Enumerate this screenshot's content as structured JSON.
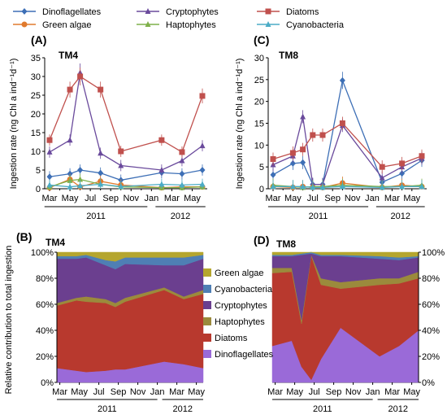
{
  "legend_top": [
    {
      "name": "Dinoflagellates",
      "color": "#3d6fb6",
      "marker": "diamond"
    },
    {
      "name": "Cryptophytes",
      "color": "#6a4a9c",
      "marker": "triangle"
    },
    {
      "name": "Diatoms",
      "color": "#c0504d",
      "marker": "square"
    },
    {
      "name": "Green algae",
      "color": "#e07a2e",
      "marker": "circle"
    },
    {
      "name": "Haptophytes",
      "color": "#7fb04a",
      "marker": "triangle"
    },
    {
      "name": "Cyanobacteria",
      "color": "#4bacc6",
      "marker": "triangle"
    }
  ],
  "chart_data": [
    {
      "panel": "(A)",
      "station": "TM4",
      "type": "line",
      "ylabel": "Ingestion rate (ng Chl a ind⁻¹d⁻¹)",
      "ylim": [
        0,
        35
      ],
      "yticks": [
        0,
        5,
        10,
        15,
        20,
        25,
        30,
        35
      ],
      "month_ticks": [
        "Mar",
        "May",
        "Jul",
        "Sep",
        "Nov",
        "Jan",
        "Mar",
        "May"
      ],
      "year_labels": [
        "2011",
        "2012"
      ],
      "x": [
        0,
        2,
        3,
        5,
        7,
        11,
        13,
        15
      ],
      "series": [
        {
          "name": "Dinoflagellates",
          "values": [
            3.2,
            4,
            5,
            4.2,
            2.3,
            4.3,
            4,
            5
          ]
        },
        {
          "name": "Cryptophytes",
          "values": [
            9.8,
            13,
            31,
            9.5,
            6.2,
            5,
            7.5,
            11.5
          ]
        },
        {
          "name": "Diatoms",
          "values": [
            13,
            26.5,
            30,
            26.5,
            10,
            13,
            9.8,
            24.8
          ]
        },
        {
          "name": "Green algae",
          "values": [
            0.3,
            2.5,
            0.5,
            2,
            1,
            0.3,
            0.5,
            0.5
          ]
        },
        {
          "name": "Haptophytes",
          "values": [
            0.5,
            2.2,
            2.5,
            1.2,
            0.5,
            0.3,
            0.3,
            0.5
          ]
        },
        {
          "name": "Cyanobacteria",
          "values": [
            1,
            0.5,
            0.8,
            1.2,
            0.6,
            1.2,
            1,
            1.2
          ]
        }
      ]
    },
    {
      "panel": "(C)",
      "station": "TM8",
      "type": "line",
      "ylim": [
        0,
        30
      ],
      "yticks": [
        0,
        5,
        10,
        15,
        20,
        25,
        30
      ],
      "month_ticks": [
        "Mar",
        "May",
        "Jul",
        "Sep",
        "Nov",
        "Jan",
        "Mar",
        "May"
      ],
      "year_labels": [
        "2011",
        "2012"
      ],
      "x": [
        0,
        2,
        3,
        4,
        5,
        7,
        11,
        13,
        15
      ],
      "series": [
        {
          "name": "Dinoflagellates",
          "values": [
            3.2,
            5.8,
            6,
            1,
            1,
            24.8,
            1.5,
            3.5,
            6.5
          ]
        },
        {
          "name": "Cryptophytes",
          "values": [
            5.5,
            7.5,
            16.5,
            1,
            1,
            14.5,
            2.5,
            5,
            7
          ]
        },
        {
          "name": "Diatoms",
          "values": [
            6.8,
            8.2,
            9,
            12.3,
            12.3,
            15,
            5,
            5.8,
            7.5
          ]
        },
        {
          "name": "Green algae",
          "values": [
            0.5,
            0.3,
            0.5,
            0.3,
            0.3,
            1.3,
            0.3,
            0.8,
            0.5
          ]
        },
        {
          "name": "Haptophytes",
          "values": [
            0.8,
            0.5,
            0.3,
            0.5,
            0.5,
            0.8,
            0.5,
            0.5,
            0.8
          ]
        },
        {
          "name": "Cyanobacteria",
          "values": [
            0.5,
            0.5,
            0.5,
            0.3,
            0.3,
            0.5,
            0.3,
            0.5,
            0.5
          ]
        }
      ]
    },
    {
      "panel": "(B)",
      "station": "TM4",
      "type": "area",
      "ylabel": "Relative contribution to total ingestion",
      "ylim": [
        0,
        100
      ],
      "yticks": [
        "0%",
        "20%",
        "40%",
        "60%",
        "80%",
        "100%"
      ],
      "month_ticks": [
        "Mar",
        "May",
        "Jul",
        "Sep",
        "Nov",
        "Jan",
        "Mar",
        "May"
      ],
      "year_labels": [
        "2011",
        "2012"
      ],
      "x": [
        0,
        2,
        3,
        5,
        6,
        7,
        11,
        13,
        15
      ],
      "series": [
        {
          "name": "Dinoflagellates",
          "values": [
            11,
            9,
            8,
            9,
            10,
            10,
            16,
            14,
            11
          ]
        },
        {
          "name": "Diatoms",
          "values": [
            48,
            54,
            54,
            52,
            48,
            52,
            55,
            50,
            57
          ]
        },
        {
          "name": "Haptophytes",
          "values": [
            2,
            2,
            4,
            3,
            3,
            3,
            2,
            2,
            3
          ]
        },
        {
          "name": "Cryptophytes",
          "values": [
            34,
            30,
            30,
            26,
            26,
            26,
            17,
            24,
            24
          ]
        },
        {
          "name": "Cyanobacteria",
          "values": [
            2,
            2,
            2,
            4,
            6,
            5,
            6,
            6,
            3
          ]
        },
        {
          "name": "Green algae",
          "values": [
            3,
            3,
            2,
            6,
            7,
            4,
            4,
            4,
            2
          ]
        }
      ]
    },
    {
      "panel": "(D)",
      "station": "TM8",
      "type": "area",
      "ylim": [
        0,
        100
      ],
      "yticks": [
        "0%",
        "20%",
        "40%",
        "60%",
        "80%",
        "100%"
      ],
      "month_ticks": [
        "Mar",
        "May",
        "Jul",
        "Sep",
        "Nov",
        "Jan",
        "Mar",
        "May"
      ],
      "year_labels": [
        "2011",
        "2012"
      ],
      "x": [
        0,
        2,
        3,
        4,
        5,
        7,
        11,
        13,
        15
      ],
      "series": [
        {
          "name": "Dinoflagellates",
          "values": [
            28,
            32,
            12,
            2,
            18,
            42,
            20,
            28,
            40
          ]
        },
        {
          "name": "Diatoms",
          "values": [
            56,
            53,
            33,
            95,
            57,
            30,
            55,
            48,
            40
          ]
        },
        {
          "name": "Haptophytes",
          "values": [
            4,
            3,
            3,
            1,
            5,
            5,
            5,
            4,
            5
          ]
        },
        {
          "name": "Cryptophytes",
          "values": [
            9,
            9,
            50,
            1,
            17,
            20,
            15,
            14,
            11
          ]
        },
        {
          "name": "Cyanobacteria",
          "values": [
            1,
            1,
            1,
            1,
            1,
            1,
            2,
            2,
            1
          ]
        },
        {
          "name": "Green algae",
          "values": [
            2,
            2,
            1,
            0,
            2,
            2,
            3,
            4,
            3
          ]
        }
      ]
    }
  ],
  "legend_area": [
    "Green algae",
    "Cyanobacteria",
    "Cryptophytes",
    "Haptophytes",
    "Diatoms",
    "Dinoflagellates"
  ],
  "area_colors": {
    "Green algae": "#b5a62e",
    "Cyanobacteria": "#4f7fb4",
    "Cryptophytes": "#6b3f8f",
    "Haptophytes": "#9b8a3c",
    "Diatoms": "#b8392e",
    "Dinoflagellates": "#9a6ad8"
  }
}
